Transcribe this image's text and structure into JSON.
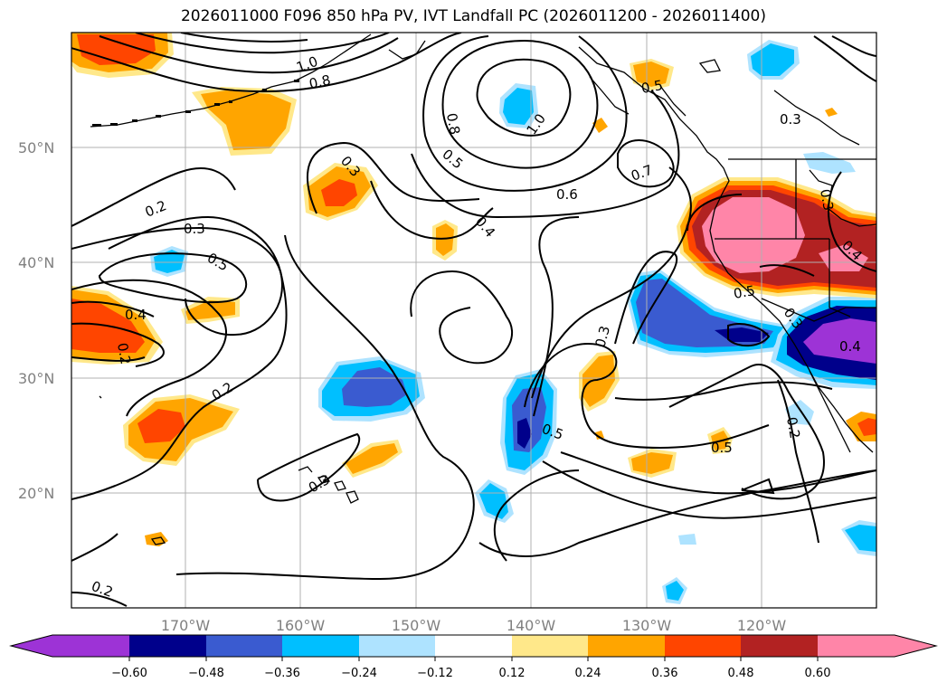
{
  "title": "2026011000 F096 850 hPa PV, IVT Landfall PC (2026011200 - 2026011400)",
  "map": {
    "lat_labels": [
      "50°N",
      "40°N",
      "30°N",
      "20°N"
    ],
    "lon_labels": [
      "170°W",
      "160°W",
      "150°W",
      "140°W",
      "130°W",
      "120°W"
    ],
    "contour_labels": [
      "0.8",
      "1.0",
      "0.8",
      "1.0",
      "0.5",
      "0.6",
      "0.7",
      "0.4",
      "0.3",
      "0.2",
      "0.3",
      "0.5",
      "0.4",
      "0.2",
      "0.2",
      "0.2",
      "0.3",
      "0.5",
      "0.5",
      "0.3",
      "0.5",
      "0.3",
      "0.4",
      "0.2",
      "0.5",
      "0.3",
      "0.3",
      "0.4"
    ],
    "shading_colors": {
      "neg_extreme": "#9d33d6",
      "neg_060": "#00008b",
      "neg_048": "#3a5bd0",
      "neg_036": "#00bfff",
      "neg_024": "#aee3ff",
      "neutral": "#ffffff",
      "pos_012": "#ffe88a",
      "pos_024": "#ffa500",
      "pos_036": "#ff4500",
      "pos_048": "#b22222",
      "pos_060": "#ff85a8"
    }
  },
  "colorbar": {
    "ticks": [
      "−0.60",
      "−0.48",
      "−0.36",
      "−0.24",
      "−0.12",
      "0.12",
      "0.24",
      "0.36",
      "0.48",
      "0.60"
    ]
  }
}
